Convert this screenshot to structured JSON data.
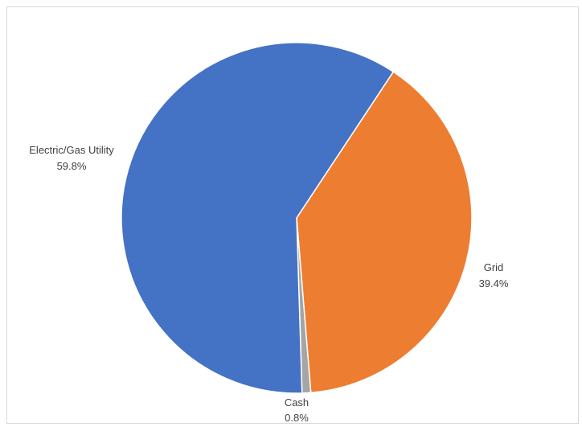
{
  "chart_data": {
    "type": "pie",
    "title": "",
    "slices": [
      {
        "name": "Grid",
        "value": 39.4,
        "label": "39.4%",
        "color": "#ED7D31"
      },
      {
        "name": "Cash",
        "value": 0.8,
        "label": "0.8%",
        "color": "#A5A5A5"
      },
      {
        "name": "Electric/Gas Utility",
        "value": 59.8,
        "label": "59.8%",
        "color": "#4472C4"
      }
    ],
    "start_angle_deg_clockwise_from_top": 33.5,
    "data_labels": "category name and percentage, outside end",
    "legend": "none"
  }
}
